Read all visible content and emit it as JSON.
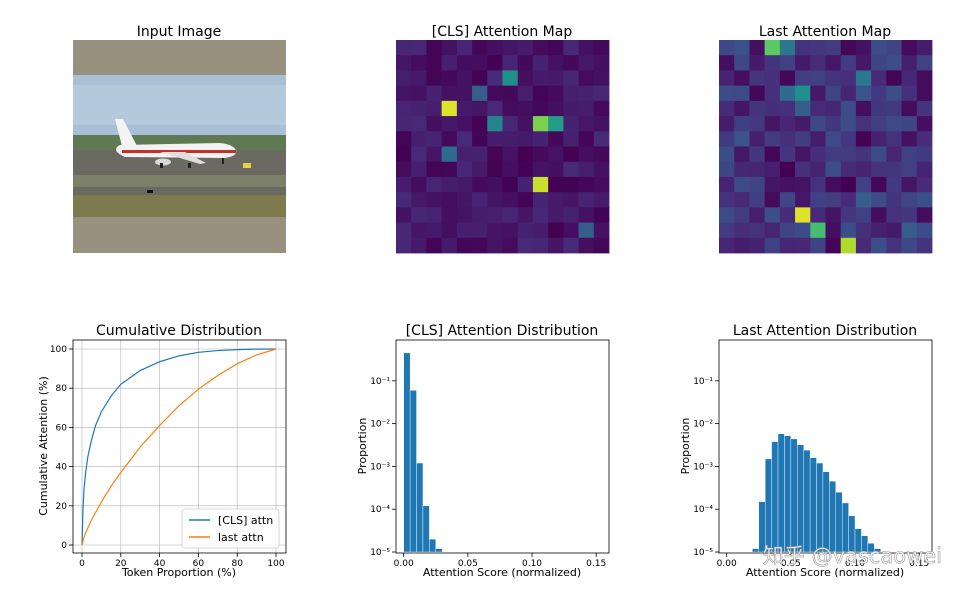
{
  "panels": {
    "input": {
      "title": "Input Image"
    },
    "cls_map": {
      "title": "[CLS] Attention Map"
    },
    "last_map": {
      "title": "Last Attention Map"
    }
  },
  "colors": {
    "cls_line": "#1f77b4",
    "last_line": "#ff7f0e",
    "bars": "#1f77b4",
    "viridis_low": "#440154",
    "viridis_high": "#fde725"
  },
  "watermark": "知乎 @vascaowei",
  "chart_data": [
    {
      "type": "heatmap",
      "title": "[CLS] Attention Map",
      "grid": [
        14,
        14
      ],
      "hot_cells": [
        {
          "row": 2,
          "col": 7,
          "value": 0.5
        },
        {
          "row": 4,
          "col": 3,
          "value": 0.95
        },
        {
          "row": 5,
          "col": 9,
          "value": 0.8
        },
        {
          "row": 5,
          "col": 10,
          "value": 0.55
        },
        {
          "row": 5,
          "col": 6,
          "value": 0.45
        },
        {
          "row": 9,
          "col": 9,
          "value": 0.92
        },
        {
          "row": 7,
          "col": 3,
          "value": 0.35
        },
        {
          "row": 12,
          "col": 12,
          "value": 0.3
        },
        {
          "row": 3,
          "col": 5,
          "value": 0.3
        }
      ]
    },
    {
      "type": "heatmap",
      "title": "Last Attention Map",
      "grid": [
        14,
        14
      ],
      "hot_cells": [
        {
          "row": 0,
          "col": 3,
          "value": 0.75
        },
        {
          "row": 0,
          "col": 4,
          "value": 0.4
        },
        {
          "row": 3,
          "col": 5,
          "value": 0.5
        },
        {
          "row": 3,
          "col": 4,
          "value": 0.35
        },
        {
          "row": 4,
          "col": 5,
          "value": 0.3
        },
        {
          "row": 2,
          "col": 9,
          "value": 0.4
        },
        {
          "row": 11,
          "col": 5,
          "value": 0.95
        },
        {
          "row": 12,
          "col": 6,
          "value": 0.7
        },
        {
          "row": 13,
          "col": 8,
          "value": 0.88
        },
        {
          "row": 10,
          "col": 9,
          "value": 0.3
        },
        {
          "row": 12,
          "col": 12,
          "value": 0.3
        }
      ]
    },
    {
      "type": "line",
      "title": "Cumulative Distribution",
      "xlabel": "Token Proportion (%)",
      "ylabel": "Cumulative Attention (%)",
      "xlim": [
        0,
        100
      ],
      "ylim": [
        0,
        100
      ],
      "xticks": [
        "0",
        "20",
        "40",
        "60",
        "80",
        "100"
      ],
      "yticks": [
        "0",
        "20",
        "40",
        "60",
        "80",
        "100"
      ],
      "grid": true,
      "legend": "bottom-right",
      "series": [
        {
          "name": "[CLS] attn",
          "x": [
            0,
            0.5,
            1,
            2,
            3,
            5,
            7,
            10,
            15,
            20,
            30,
            40,
            50,
            60,
            70,
            80,
            90,
            100
          ],
          "y": [
            0,
            18,
            28,
            38,
            45,
            54,
            61,
            68,
            76,
            82,
            89,
            93.5,
            96.5,
            98.3,
            99.2,
            99.7,
            99.95,
            100
          ]
        },
        {
          "name": "last attn",
          "x": [
            0,
            1,
            2,
            5,
            10,
            15,
            20,
            30,
            40,
            50,
            60,
            70,
            80,
            90,
            100
          ],
          "y": [
            0,
            4,
            6.5,
            13,
            22,
            30,
            37,
            50,
            61,
            71,
            79.5,
            86.5,
            92.5,
            97,
            100
          ]
        }
      ]
    },
    {
      "type": "bar",
      "title": "[CLS] Attention Distribution",
      "xlabel": "Attention Score (normalized)",
      "ylabel": "Proportion",
      "yscale": "log",
      "xlim": [
        -0.006,
        0.16
      ],
      "ylim": [
        1e-05,
        0.9
      ],
      "xticks": [
        "0.00",
        "0.05",
        "0.10",
        "0.15"
      ],
      "yticks": [
        "10⁻⁵",
        "10⁻⁴",
        "10⁻³",
        "10⁻²",
        "10⁻¹"
      ],
      "bin_width": 0.005,
      "bin_starts": [
        0.0,
        0.005,
        0.01,
        0.015,
        0.02,
        0.025
      ],
      "values": [
        0.45,
        0.06,
        0.0012,
        0.00012,
        2e-05,
        1.2e-05
      ]
    },
    {
      "type": "bar",
      "title": "Last Attention Distribution",
      "xlabel": "Attention Score (normalized)",
      "ylabel": "Proportion",
      "yscale": "log",
      "xlim": [
        -0.006,
        0.16
      ],
      "ylim": [
        1e-05,
        0.9
      ],
      "xticks": [
        "0.00",
        "0.05",
        "0.10",
        "0.15"
      ],
      "yticks": [
        "10⁻⁵",
        "10⁻⁴",
        "10⁻³",
        "10⁻²",
        "10⁻¹"
      ],
      "bin_width": 0.005,
      "bin_starts": [
        0.02,
        0.025,
        0.03,
        0.035,
        0.04,
        0.045,
        0.05,
        0.055,
        0.06,
        0.065,
        0.07,
        0.075,
        0.08,
        0.085,
        0.09,
        0.095,
        0.1,
        0.105,
        0.11,
        0.115
      ],
      "values": [
        1.2e-05,
        0.00015,
        0.0015,
        0.0038,
        0.0058,
        0.0052,
        0.0044,
        0.0032,
        0.0024,
        0.0016,
        0.0012,
        0.00075,
        0.00045,
        0.00025,
        0.00014,
        7e-05,
        3.5e-05,
        2.4e-05,
        1.6e-05,
        1.2e-05
      ]
    }
  ]
}
